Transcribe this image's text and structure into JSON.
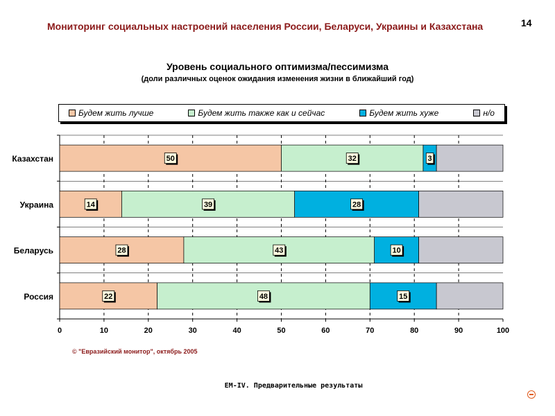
{
  "header": {
    "title": "Мониторинг социальных настроений населения России, Беларуси, Украины и Казахстана",
    "page_number": "14"
  },
  "source": "© \"Евразийский монитор\", октябрь 2005",
  "footer": "EM-IV. Предварительные результаты",
  "corner_icon": "minus-circle-icon",
  "chart_data": {
    "type": "bar",
    "orientation": "horizontal",
    "stacked": true,
    "title": "Уровень социального оптимизма/пессимизма",
    "subtitle": "(доли различных оценок ожидания изменения жизни в ближайший год)",
    "categories": [
      "Казахстан",
      "Украина",
      "Беларусь",
      "Россия"
    ],
    "series": [
      {
        "name": "Будем жить лучше",
        "color": "#f5c6a5",
        "values": [
          50,
          14,
          28,
          22
        ]
      },
      {
        "name": "Будем жить также как и сейчас",
        "color": "#c6efce",
        "values": [
          32,
          39,
          43,
          48
        ]
      },
      {
        "name": "Будем жить хуже",
        "color": "#00b0e0",
        "values": [
          3,
          28,
          10,
          15
        ]
      },
      {
        "name": "н/о",
        "color": "#c8c8d0",
        "values": [
          15,
          19,
          19,
          15
        ]
      }
    ],
    "labeled_series": [
      0,
      1,
      2
    ],
    "xlim": [
      0,
      100
    ],
    "xticks": [
      0,
      10,
      20,
      30,
      40,
      50,
      60,
      70,
      80,
      90,
      100
    ],
    "grid": true,
    "legend_position": "top"
  }
}
